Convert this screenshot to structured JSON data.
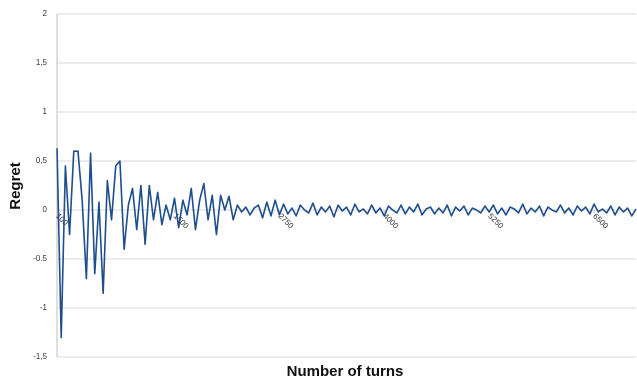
{
  "chart_data": {
    "type": "line",
    "x_label": "Number of turns",
    "y_label": "Regret",
    "x": [
      100,
      150,
      200,
      250,
      300,
      350,
      400,
      450,
      500,
      550,
      600,
      650,
      700,
      750,
      800,
      850,
      900,
      950,
      1000,
      1050,
      1100,
      1150,
      1200,
      1250,
      1300,
      1350,
      1400,
      1450,
      1500,
      1550,
      1600,
      1650,
      1700,
      1750,
      1800,
      1850,
      1900,
      1950,
      2000,
      2050,
      2100,
      2150,
      2200,
      2250,
      2300,
      2350,
      2400,
      2450,
      2500,
      2550,
      2600,
      2650,
      2700,
      2750,
      2800,
      2850,
      2900,
      2950,
      3000,
      3050,
      3100,
      3150,
      3200,
      3250,
      3300,
      3350,
      3400,
      3450,
      3500,
      3550,
      3600,
      3650,
      3700,
      3750,
      3800,
      3850,
      3900,
      3950,
      4000,
      4050,
      4100,
      4150,
      4200,
      4250,
      4300,
      4350,
      4400,
      4450,
      4500,
      4550,
      4600,
      4650,
      4700,
      4750,
      4800,
      4850,
      4900,
      4950,
      5000,
      5050,
      5100,
      5150,
      5200,
      5250,
      5300,
      5350,
      5400,
      5450,
      5500,
      5550,
      5600,
      5650,
      5700,
      5750,
      5800,
      5850,
      5900,
      5950,
      6000,
      6050,
      6100,
      6150,
      6200,
      6250,
      6300,
      6350,
      6400,
      6450,
      6500,
      6550,
      6600,
      6650,
      6700,
      6750,
      6800,
      6850,
      6900,
      6950,
      7000
    ],
    "series": [
      {
        "name": "Regret",
        "color": "#1f4e8c",
        "values": [
          0.63,
          -1.3,
          0.45,
          -0.25,
          0.6,
          0.6,
          0.1,
          -0.7,
          0.58,
          -0.65,
          0.08,
          -0.85,
          0.3,
          -0.1,
          0.45,
          0.5,
          -0.4,
          0.05,
          0.22,
          -0.2,
          0.25,
          -0.35,
          0.25,
          -0.1,
          0.18,
          -0.15,
          0.05,
          -0.1,
          0.12,
          -0.18,
          0.1,
          -0.05,
          0.22,
          -0.2,
          0.1,
          0.27,
          -0.1,
          0.15,
          -0.25,
          0.15,
          0.0,
          0.14,
          -0.1,
          0.05,
          -0.02,
          0.03,
          -0.05,
          0.02,
          0.05,
          -0.08,
          0.08,
          -0.06,
          0.1,
          -0.05,
          0.06,
          -0.04,
          0.02,
          -0.06,
          0.05,
          0.0,
          -0.03,
          0.07,
          -0.05,
          0.03,
          -0.02,
          0.04,
          -0.07,
          0.05,
          -0.01,
          0.03,
          -0.05,
          0.06,
          -0.02,
          0.01,
          -0.04,
          0.05,
          -0.03,
          0.02,
          -0.06,
          0.04,
          0.0,
          -0.03,
          0.05,
          -0.04,
          0.03,
          -0.02,
          0.06,
          -0.05,
          0.01,
          0.03,
          -0.04,
          0.02,
          -0.03,
          0.05,
          -0.06,
          0.03,
          -0.01,
          0.04,
          -0.05,
          0.02,
          0.0,
          -0.03,
          0.04,
          -0.02,
          0.05,
          -0.04,
          0.02,
          -0.05,
          0.03,
          0.01,
          -0.03,
          0.06,
          -0.04,
          0.02,
          -0.02,
          0.04,
          -0.06,
          0.03,
          0.0,
          -0.02,
          0.05,
          -0.03,
          0.02,
          -0.05,
          0.04,
          -0.01,
          0.03,
          -0.04,
          0.06,
          -0.02,
          0.01,
          -0.03,
          0.04,
          -0.05,
          0.03,
          -0.02,
          0.02,
          -0.06,
          0.01
        ]
      }
    ],
    "xlim": [
      100,
      7000
    ],
    "xticks": [
      100,
      1500,
      2750,
      4000,
      5250,
      6500
    ],
    "ylim": [
      -1.5,
      2
    ],
    "yticks": [
      {
        "value": -1.5,
        "label": "-1,5"
      },
      -1,
      {
        "value": -0.5,
        "label": "-0.5"
      },
      0,
      {
        "value": 0.5,
        "label": "0,5"
      },
      1,
      {
        "value": 1.5,
        "label": "1,5"
      },
      2
    ],
    "grid": true
  }
}
